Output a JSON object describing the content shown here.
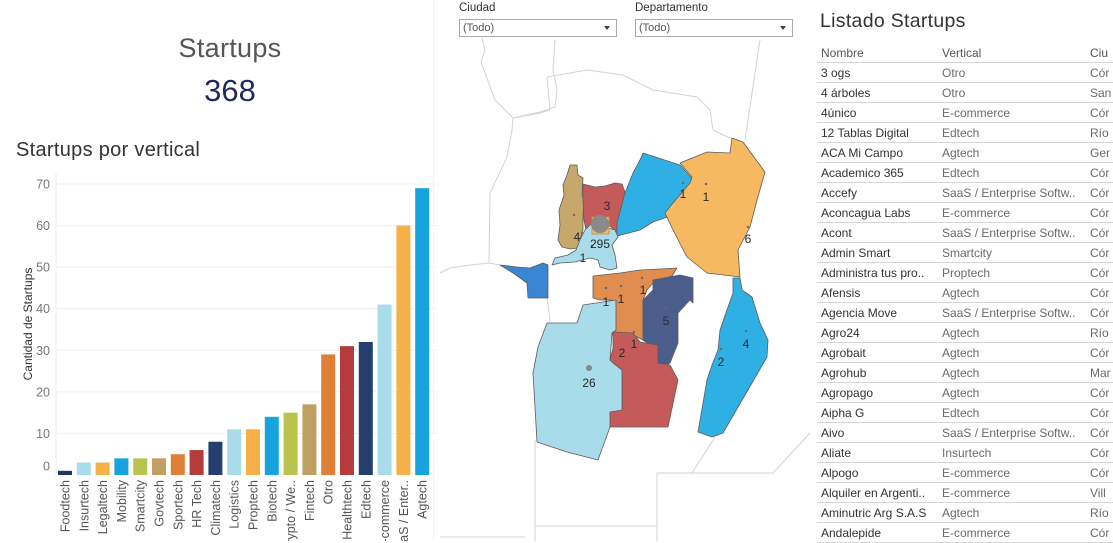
{
  "kpi": {
    "title": "Startups",
    "value": "368"
  },
  "bar_section": {
    "title": "Startups por vertical"
  },
  "filters": [
    {
      "label": "Ciudad",
      "value": "(Todo)"
    },
    {
      "label": "Departamento",
      "value": "(Todo)"
    }
  ],
  "map": {
    "labels": [
      "3",
      "295",
      "4",
      "1",
      "1",
      "1",
      "6",
      "1",
      "1",
      "1",
      "5",
      "1",
      "2",
      "26",
      "4",
      "2"
    ],
    "colors": {
      "tan": "#c6a86c",
      "red": "#c45b5a",
      "blue": "#2fb0e4",
      "orange": "#f6b860",
      "lightblue": "#a9dcea",
      "royal": "#3a86d2",
      "amber": "#e08d4f",
      "slate": "#4b5d8b",
      "gray": "#8a8a8a",
      "outline": "#cfcfcf"
    }
  },
  "table": {
    "title": "Listado Startups",
    "headers": [
      "Nombre",
      "Vertical",
      "Ciu"
    ],
    "rows": [
      [
        "3 ogs",
        "Otro",
        "Cór"
      ],
      [
        "4 árboles",
        "Otro",
        "San"
      ],
      [
        "4único",
        "E-commerce",
        "Cór"
      ],
      [
        "12 Tablas Digital",
        "Edtech",
        "Río"
      ],
      [
        "ACA Mi Campo",
        "Agtech",
        "Ger"
      ],
      [
        "Academico 365",
        "Edtech",
        "Cór"
      ],
      [
        "Accefy",
        "SaaS / Enterprise Softw..",
        "Cór"
      ],
      [
        "Aconcagua Labs",
        "E-commerce",
        "Cór"
      ],
      [
        "Acont",
        "SaaS / Enterprise Softw..",
        "Cór"
      ],
      [
        "Admin Smart",
        "Smartcity",
        "Cór"
      ],
      [
        "Administra tus pro..",
        "Proptech",
        "Cór"
      ],
      [
        "Afensis",
        "Agtech",
        "Cór"
      ],
      [
        "Agencia Move",
        "SaaS / Enterprise Softw..",
        "Cór"
      ],
      [
        "Agro24",
        "Agtech",
        "Río"
      ],
      [
        "Agrobait",
        "Agtech",
        "Cór"
      ],
      [
        "Agrohub",
        "Agtech",
        "Mar"
      ],
      [
        "Agropago",
        "Agtech",
        "Cór"
      ],
      [
        "Aipha G",
        "Edtech",
        "Cór"
      ],
      [
        "Aivo",
        "SaaS / Enterprise Softw..",
        "Cór"
      ],
      [
        "Aliate",
        "Insurtech",
        "Cór"
      ],
      [
        "Alpogo",
        "E-commerce",
        "Cór"
      ],
      [
        "Alquiler en Argenti..",
        "E-commerce",
        "Vill"
      ],
      [
        "Aminutric Arg S.A.S",
        "Agtech",
        "Río"
      ],
      [
        "Andalepide",
        "E-commerce",
        "Cór"
      ]
    ]
  },
  "chart_data": {
    "type": "bar",
    "title": "Startups por vertical",
    "xlabel": "",
    "ylabel": "Cantidad de Startups",
    "ylim": [
      0,
      70
    ],
    "yticks": [
      0,
      10,
      20,
      30,
      40,
      50,
      60,
      70
    ],
    "grid": true,
    "categories": [
      "Foodtech",
      "Insurtech",
      "Legaltech",
      "Mobility",
      "Smartcity",
      "Govtech",
      "Sportech",
      "HR Tech",
      "Climatech",
      "Logistics",
      "Proptech",
      "Biotech",
      "Crypto / We..",
      "Fintech",
      "Otro",
      "Healthtech",
      "Edtech",
      "E-commerce",
      "SaaS / Enter..",
      "Agtech"
    ],
    "values": [
      1,
      3,
      3,
      4,
      4,
      4,
      5,
      6,
      8,
      11,
      11,
      14,
      15,
      17,
      29,
      31,
      32,
      41,
      60,
      69
    ],
    "colors": [
      "#1f3461",
      "#a9dcea",
      "#f6b04a",
      "#17a3de",
      "#b9c34d",
      "#bf9f62",
      "#df8036",
      "#b63c3c",
      "#243f6e",
      "#a9dcea",
      "#f6b04a",
      "#17a3de",
      "#b9c34d",
      "#bf9f62",
      "#df8036",
      "#b63c3c",
      "#243f6e",
      "#a9dcea",
      "#f6b04a",
      "#17a3de"
    ]
  }
}
